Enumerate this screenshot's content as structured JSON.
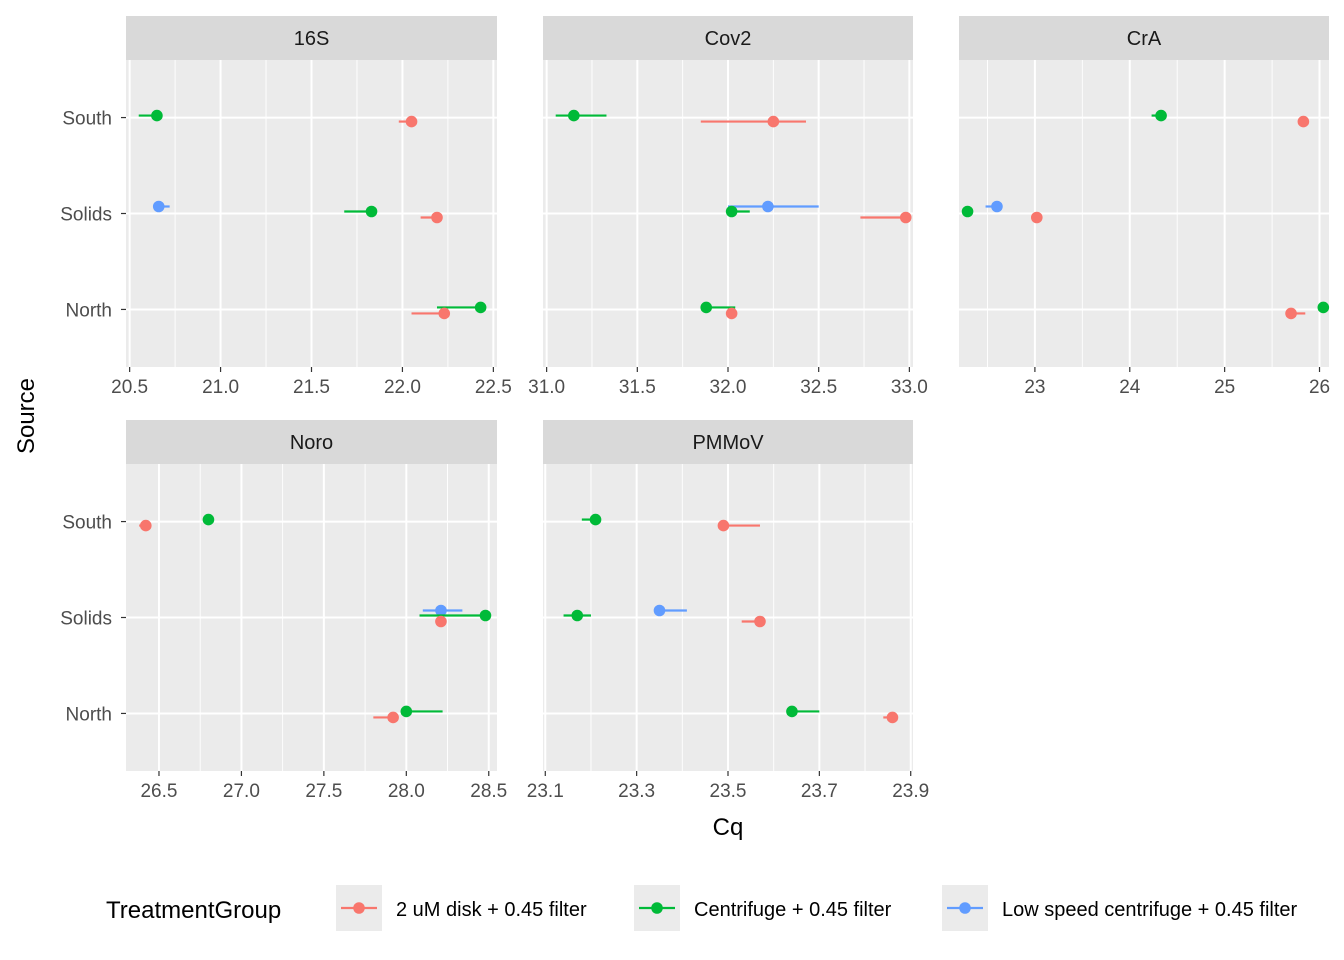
{
  "chart_data": {
    "type": "scatter",
    "xlabel": "Cq",
    "ylabel": "Source",
    "categories": [
      "North",
      "Solids",
      "South"
    ],
    "grid": true,
    "legend": {
      "title": "TreatmentGroup",
      "placement": "bottom",
      "entries": [
        {
          "label": "2 uM disk + 0.45 filter",
          "color": "#F8766D"
        },
        {
          "label": "Centrifuge + 0.45 filter",
          "color": "#00BA38"
        },
        {
          "label": "Low speed centrifuge + 0.45 filter",
          "color": "#619CFF"
        }
      ]
    },
    "panels": [
      {
        "title": "16S",
        "xlim": [
          20.48,
          22.52
        ],
        "ticks": [
          "20.5",
          "21.0",
          "21.5",
          "22.0",
          "22.5"
        ],
        "tick_values": [
          20.5,
          21.0,
          21.5,
          22.0,
          22.5
        ],
        "points": [
          {
            "source": "South",
            "group": 1,
            "x": 20.65,
            "xmin": 20.55,
            "xmax": 20.65
          },
          {
            "source": "South",
            "group": 0,
            "x": 22.05,
            "xmin": 21.98,
            "xmax": 22.05
          },
          {
            "source": "Solids",
            "group": 2,
            "x": 20.66,
            "xmin": 20.66,
            "xmax": 20.72
          },
          {
            "source": "Solids",
            "group": 1,
            "x": 21.83,
            "xmin": 21.68,
            "xmax": 21.83
          },
          {
            "source": "Solids",
            "group": 0,
            "x": 22.19,
            "xmin": 22.1,
            "xmax": 22.19
          },
          {
            "source": "North",
            "group": 1,
            "x": 22.43,
            "xmin": 22.19,
            "xmax": 22.43
          },
          {
            "source": "North",
            "group": 0,
            "x": 22.23,
            "xmin": 22.05,
            "xmax": 22.23
          }
        ]
      },
      {
        "title": "Cov2",
        "xlim": [
          30.98,
          33.02
        ],
        "ticks": [
          "31.0",
          "31.5",
          "32.0",
          "32.5",
          "33.0"
        ],
        "tick_values": [
          31.0,
          31.5,
          32.0,
          32.5,
          33.0
        ],
        "points": [
          {
            "source": "South",
            "group": 1,
            "x": 31.15,
            "xmin": 31.05,
            "xmax": 31.33
          },
          {
            "source": "South",
            "group": 0,
            "x": 32.25,
            "xmin": 31.85,
            "xmax": 32.43
          },
          {
            "source": "Solids",
            "group": 2,
            "x": 32.22,
            "xmin": 32.0,
            "xmax": 32.5
          },
          {
            "source": "Solids",
            "group": 1,
            "x": 32.02,
            "xmin": 32.02,
            "xmax": 32.12
          },
          {
            "source": "Solids",
            "group": 0,
            "x": 32.98,
            "xmin": 32.73,
            "xmax": 32.98
          },
          {
            "source": "North",
            "group": 1,
            "x": 31.88,
            "xmin": 31.88,
            "xmax": 32.04
          },
          {
            "source": "North",
            "group": 0,
            "x": 32.02,
            "xmin": 32.0,
            "xmax": 32.02
          }
        ]
      },
      {
        "title": "CrA",
        "xlim": [
          22.2,
          26.1
        ],
        "ticks": [
          "23",
          "24",
          "25",
          "26"
        ],
        "tick_values": [
          23,
          24,
          25,
          26
        ],
        "points": [
          {
            "source": "South",
            "group": 1,
            "x": 24.33,
            "xmin": 24.23,
            "xmax": 24.33
          },
          {
            "source": "South",
            "group": 0,
            "x": 25.83,
            "xmin": 25.8,
            "xmax": 25.86
          },
          {
            "source": "Solids",
            "group": 2,
            "x": 22.6,
            "xmin": 22.48,
            "xmax": 22.6
          },
          {
            "source": "Solids",
            "group": 1,
            "x": 22.29,
            "xmin": 22.29,
            "xmax": 22.29
          },
          {
            "source": "Solids",
            "group": 0,
            "x": 23.02,
            "xmin": 23.02,
            "xmax": 23.02
          },
          {
            "source": "North",
            "group": 1,
            "x": 26.04,
            "xmin": 26.04,
            "xmax": 26.04
          },
          {
            "source": "North",
            "group": 0,
            "x": 25.7,
            "xmin": 25.7,
            "xmax": 25.85
          }
        ]
      },
      {
        "title": "Noro",
        "xlim": [
          26.3,
          28.55
        ],
        "ticks": [
          "26.5",
          "27.0",
          "27.5",
          "28.0",
          "28.5"
        ],
        "tick_values": [
          26.5,
          27.0,
          27.5,
          28.0,
          28.5
        ],
        "points": [
          {
            "source": "South",
            "group": 1,
            "x": 26.8,
            "xmin": 26.77,
            "xmax": 26.8
          },
          {
            "source": "South",
            "group": 0,
            "x": 26.42,
            "xmin": 26.38,
            "xmax": 26.45
          },
          {
            "source": "Solids",
            "group": 2,
            "x": 28.21,
            "xmin": 28.1,
            "xmax": 28.34
          },
          {
            "source": "Solids",
            "group": 1,
            "x": 28.48,
            "xmin": 28.08,
            "xmax": 28.48
          },
          {
            "source": "Solids",
            "group": 0,
            "x": 28.21,
            "xmin": 28.18,
            "xmax": 28.24
          },
          {
            "source": "North",
            "group": 1,
            "x": 28.0,
            "xmin": 28.0,
            "xmax": 28.22
          },
          {
            "source": "North",
            "group": 0,
            "x": 27.92,
            "xmin": 27.8,
            "xmax": 27.92
          }
        ]
      },
      {
        "title": "PMMoV",
        "xlim": [
          23.095,
          23.905
        ],
        "ticks": [
          "23.1",
          "23.3",
          "23.5",
          "23.7",
          "23.9"
        ],
        "tick_values": [
          23.1,
          23.3,
          23.5,
          23.7,
          23.9
        ],
        "points": [
          {
            "source": "South",
            "group": 1,
            "x": 23.21,
            "xmin": 23.18,
            "xmax": 23.21
          },
          {
            "source": "South",
            "group": 0,
            "x": 23.49,
            "xmin": 23.49,
            "xmax": 23.57
          },
          {
            "source": "Solids",
            "group": 2,
            "x": 23.35,
            "xmin": 23.35,
            "xmax": 23.41
          },
          {
            "source": "Solids",
            "group": 1,
            "x": 23.17,
            "xmin": 23.14,
            "xmax": 23.2
          },
          {
            "source": "Solids",
            "group": 0,
            "x": 23.57,
            "xmin": 23.53,
            "xmax": 23.57
          },
          {
            "source": "North",
            "group": 1,
            "x": 23.64,
            "xmin": 23.64,
            "xmax": 23.7
          },
          {
            "source": "North",
            "group": 0,
            "x": 23.86,
            "xmin": 23.84,
            "xmax": 23.86
          }
        ]
      }
    ]
  }
}
